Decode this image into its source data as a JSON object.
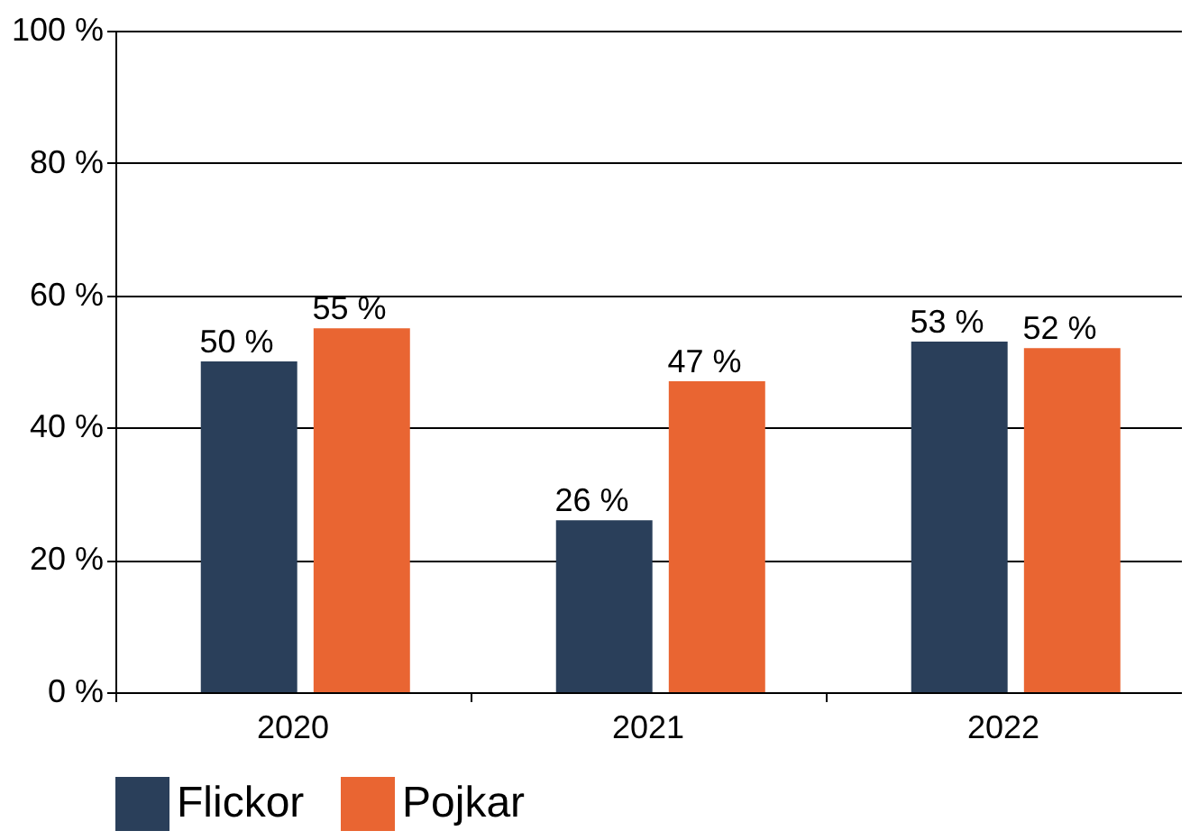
{
  "chart_data": {
    "type": "bar",
    "categories": [
      "2020",
      "2021",
      "2022"
    ],
    "series": [
      {
        "name": "Flickor",
        "color": "#2a3f5a",
        "values": [
          50,
          26,
          53
        ],
        "value_labels": [
          "50 %",
          "26 %",
          "53 %"
        ]
      },
      {
        "name": "Pojkar",
        "color": "#e96532",
        "values": [
          55,
          47,
          52
        ],
        "value_labels": [
          "55 %",
          "47 %",
          "52 %"
        ]
      }
    ],
    "ylim": [
      0,
      100
    ],
    "yticks": [
      {
        "value": 0,
        "label": "0 %"
      },
      {
        "value": 20,
        "label": "20 %"
      },
      {
        "value": 40,
        "label": "40 %"
      },
      {
        "value": 60,
        "label": "60 %"
      },
      {
        "value": 80,
        "label": "80 %"
      },
      {
        "value": 100,
        "label": "100 %"
      }
    ],
    "grid": "y",
    "legend": "bottom"
  }
}
